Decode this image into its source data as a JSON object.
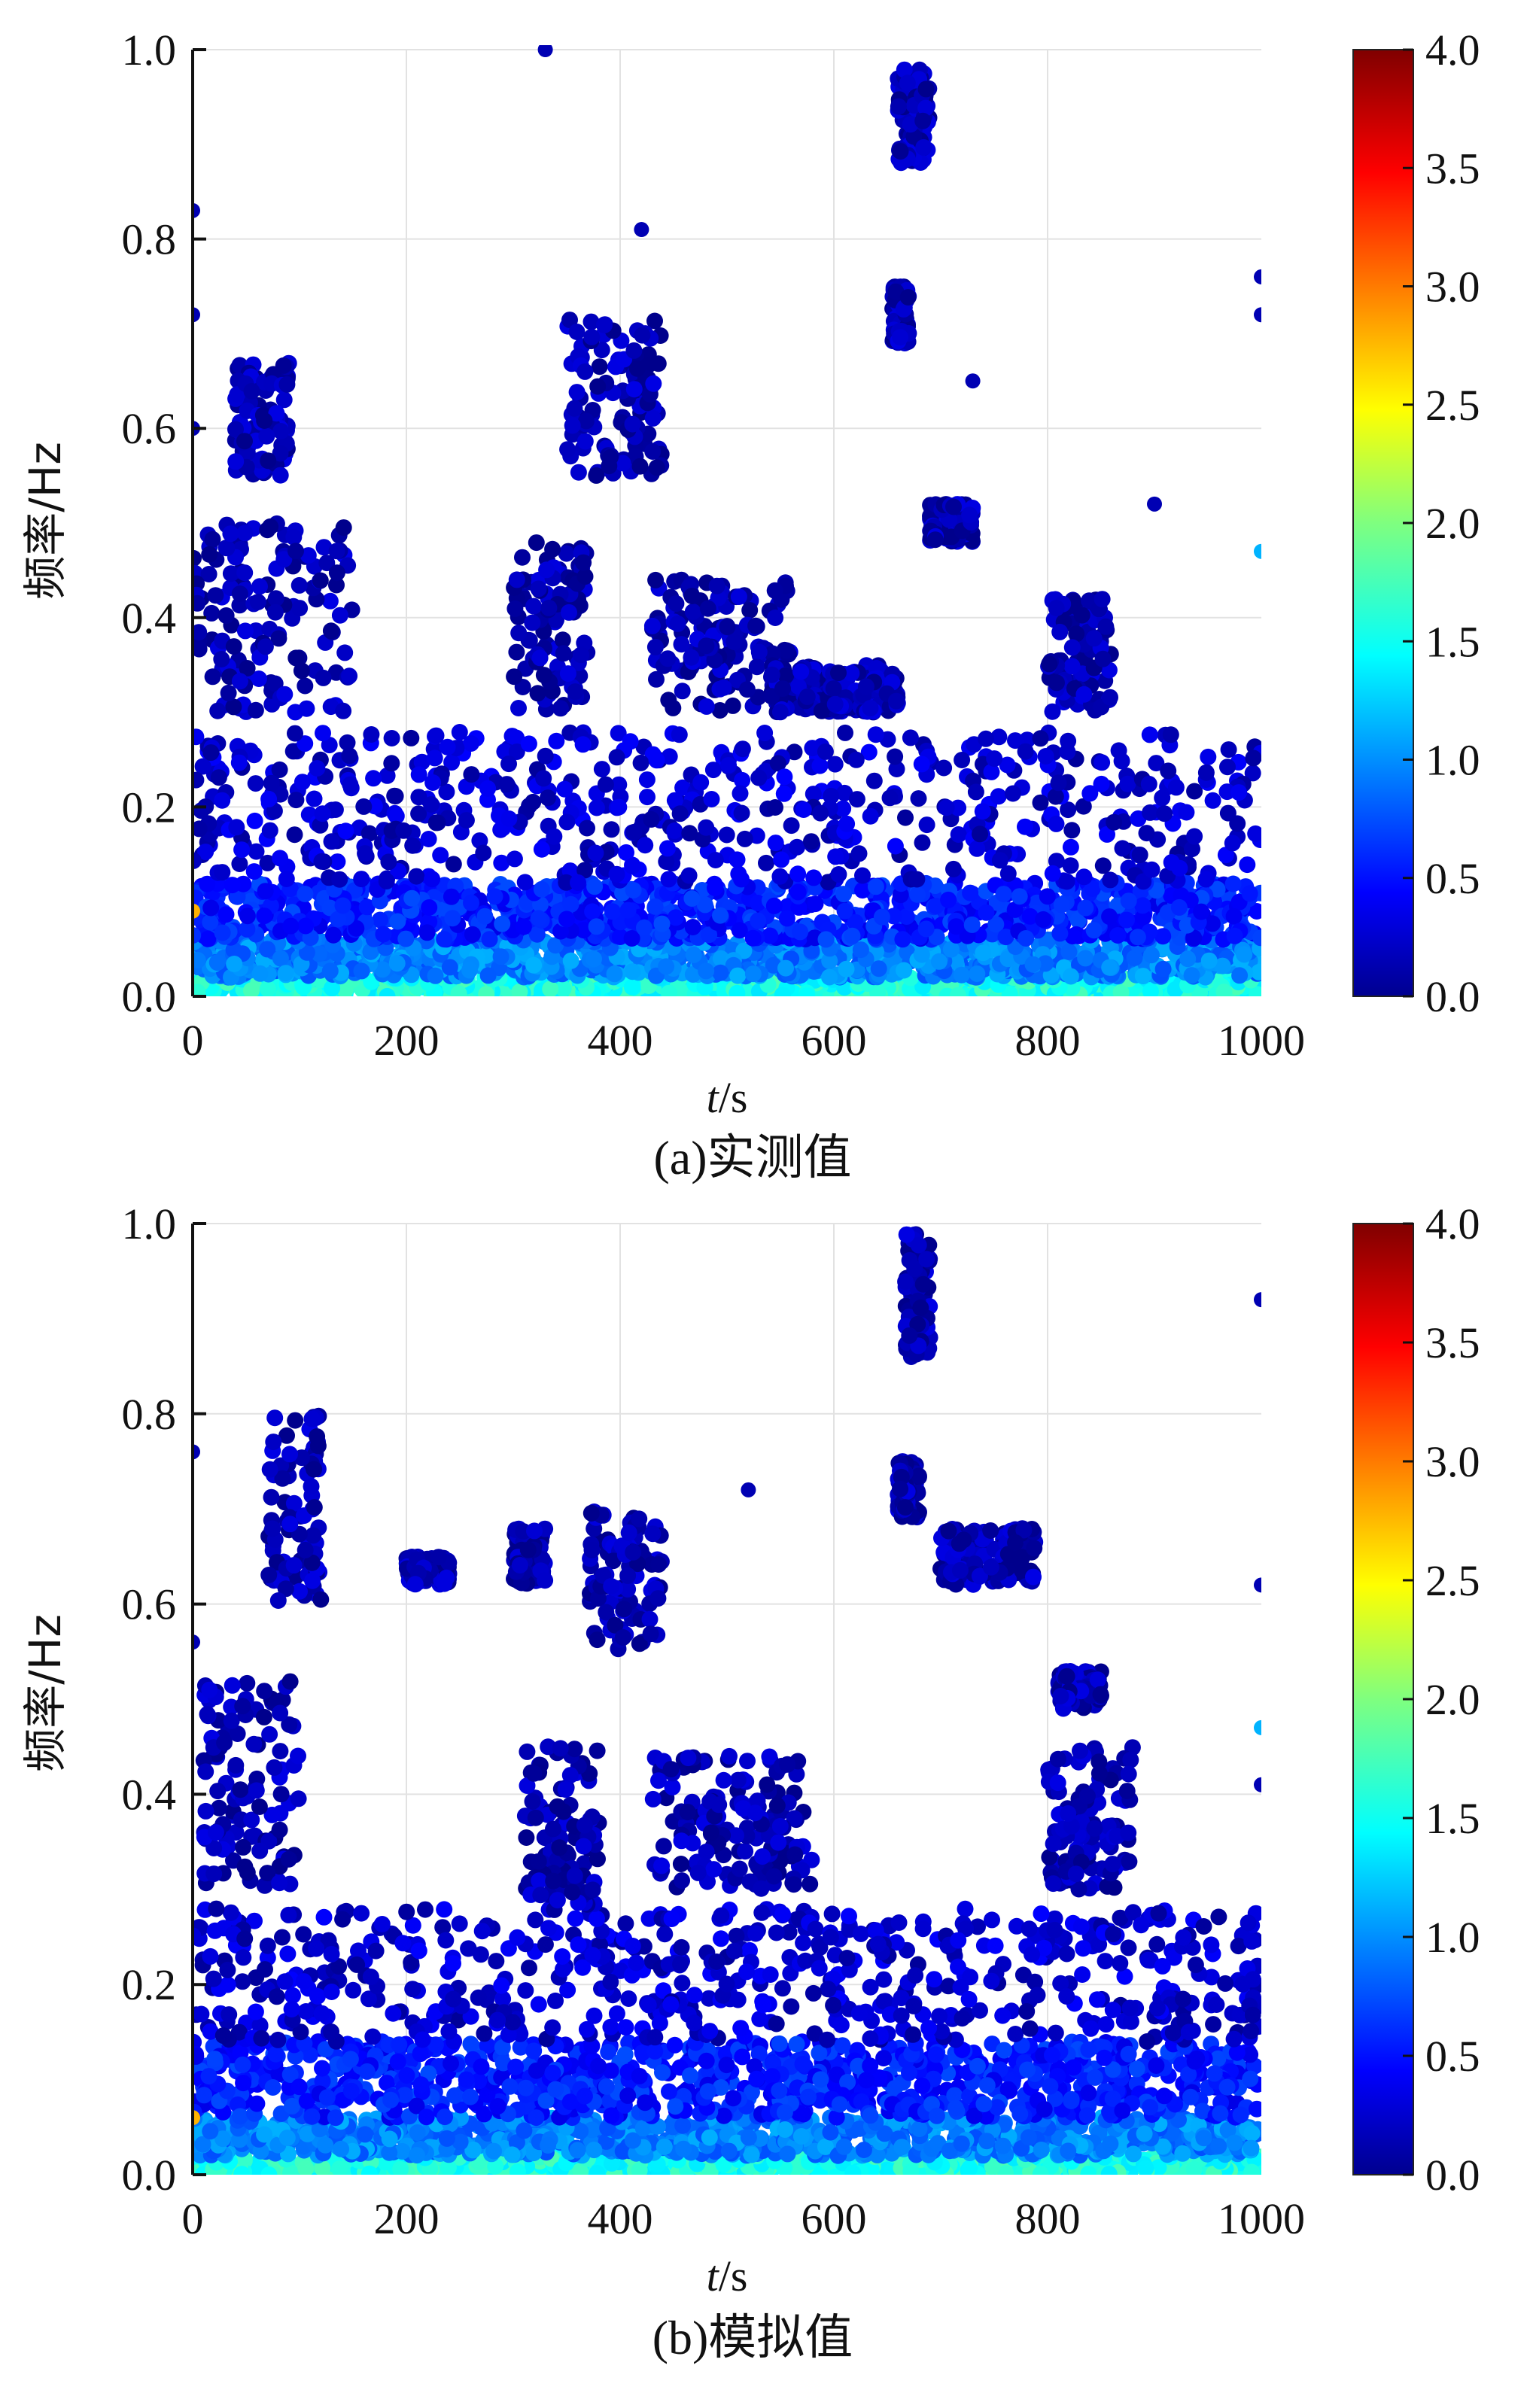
{
  "chart_data": [
    {
      "type": "scatter",
      "caption": "(a)实测值",
      "xlabel_italic": "t",
      "xlabel_unit": "/s",
      "ylabel": "频率/Hz",
      "xlim": [
        0,
        1000
      ],
      "ylim": [
        0,
        1.0
      ],
      "xticks": [
        "0",
        "200",
        "400",
        "600",
        "800",
        "1000"
      ],
      "yticks": [
        "0.0",
        "0.2",
        "0.4",
        "0.6",
        "0.8",
        "1.0"
      ],
      "grid": true,
      "colorbar": {
        "range": [
          0,
          4.0
        ],
        "ticks": [
          "0.0",
          "0.5",
          "1.0",
          "1.5",
          "2.0",
          "2.5",
          "3.0",
          "3.5",
          "4.0"
        ],
        "colormap": "jet"
      },
      "clusters": [
        {
          "x": [
            0,
            1000
          ],
          "y": [
            0.0,
            0.02
          ],
          "value": 1.6
        },
        {
          "x": [
            0,
            1000
          ],
          "y": [
            0.02,
            0.06
          ],
          "value": 1.0
        },
        {
          "x": [
            0,
            1000
          ],
          "y": [
            0.06,
            0.12
          ],
          "value": 0.6
        },
        {
          "x": [
            0,
            1000
          ],
          "y": [
            0.12,
            0.28
          ],
          "value": 0.3
        },
        {
          "x": [
            0,
            150
          ],
          "y": [
            0.3,
            0.5
          ],
          "value": 0.2
        },
        {
          "x": [
            40,
            90
          ],
          "y": [
            0.55,
            0.67
          ],
          "value": 0.2
        },
        {
          "x": [
            300,
            370
          ],
          "y": [
            0.3,
            0.48
          ],
          "value": 0.2
        },
        {
          "x": [
            350,
            440
          ],
          "y": [
            0.55,
            0.72
          ],
          "value": 0.2
        },
        {
          "x": [
            430,
            560
          ],
          "y": [
            0.3,
            0.44
          ],
          "value": 0.2
        },
        {
          "x": [
            690,
            730
          ],
          "y": [
            0.48,
            0.52
          ],
          "value": 0.2
        },
        {
          "x": [
            800,
            860
          ],
          "y": [
            0.3,
            0.42
          ],
          "value": 0.2
        },
        {
          "x": [
            660,
            690
          ],
          "y": [
            0.88,
            0.98
          ],
          "value": 0.2
        },
        {
          "x": [
            655,
            670
          ],
          "y": [
            0.69,
            0.75
          ],
          "value": 0.2
        },
        {
          "x": [
            540,
            660
          ],
          "y": [
            0.3,
            0.35
          ],
          "value": 0.2
        }
      ],
      "points": [
        {
          "x": 330,
          "y": 1.0,
          "value": 0.2
        },
        {
          "x": 0,
          "y": 0.83,
          "value": 0.2
        },
        {
          "x": 0,
          "y": 0.72,
          "value": 0.2
        },
        {
          "x": 0,
          "y": 0.6,
          "value": 0.2
        },
        {
          "x": 1000,
          "y": 0.47,
          "value": 1.2
        },
        {
          "x": 1000,
          "y": 0.76,
          "value": 0.2
        },
        {
          "x": 1000,
          "y": 0.72,
          "value": 0.2
        },
        {
          "x": 900,
          "y": 0.52,
          "value": 0.2
        },
        {
          "x": 730,
          "y": 0.65,
          "value": 0.2
        },
        {
          "x": 0,
          "y": 0.09,
          "value": 2.8
        },
        {
          "x": 420,
          "y": 0.81,
          "value": 0.2
        }
      ]
    },
    {
      "type": "scatter",
      "caption": "(b)模拟值",
      "xlabel_italic": "t",
      "xlabel_unit": "/s",
      "ylabel": "频率/Hz",
      "xlim": [
        0,
        1000
      ],
      "ylim": [
        0,
        1.0
      ],
      "xticks": [
        "0",
        "200",
        "400",
        "600",
        "800",
        "1000"
      ],
      "yticks": [
        "0.0",
        "0.2",
        "0.4",
        "0.6",
        "0.8",
        "1.0"
      ],
      "grid": true,
      "colorbar": {
        "range": [
          0,
          4.0
        ],
        "ticks": [
          "0.0",
          "0.5",
          "1.0",
          "1.5",
          "2.0",
          "2.5",
          "3.0",
          "3.5",
          "4.0"
        ],
        "colormap": "jet"
      },
      "clusters": [
        {
          "x": [
            0,
            1000
          ],
          "y": [
            0.0,
            0.02
          ],
          "value": 1.6
        },
        {
          "x": [
            0,
            1000
          ],
          "y": [
            0.02,
            0.06
          ],
          "value": 1.0
        },
        {
          "x": [
            0,
            1000
          ],
          "y": [
            0.06,
            0.14
          ],
          "value": 0.6
        },
        {
          "x": [
            0,
            1000
          ],
          "y": [
            0.14,
            0.28
          ],
          "value": 0.3
        },
        {
          "x": [
            10,
            100
          ],
          "y": [
            0.3,
            0.52
          ],
          "value": 0.2
        },
        {
          "x": [
            70,
            120
          ],
          "y": [
            0.6,
            0.8
          ],
          "value": 0.2
        },
        {
          "x": [
            310,
            380
          ],
          "y": [
            0.28,
            0.45
          ],
          "value": 0.2
        },
        {
          "x": [
            370,
            440
          ],
          "y": [
            0.55,
            0.7
          ],
          "value": 0.2
        },
        {
          "x": [
            430,
            580
          ],
          "y": [
            0.3,
            0.44
          ],
          "value": 0.2
        },
        {
          "x": [
            800,
            880
          ],
          "y": [
            0.3,
            0.45
          ],
          "value": 0.2
        },
        {
          "x": [
            810,
            850
          ],
          "y": [
            0.49,
            0.53
          ],
          "value": 0.2
        },
        {
          "x": [
            665,
            690
          ],
          "y": [
            0.86,
            0.99
          ],
          "value": 0.2
        },
        {
          "x": [
            660,
            680
          ],
          "y": [
            0.69,
            0.75
          ],
          "value": 0.2
        },
        {
          "x": [
            700,
            790
          ],
          "y": [
            0.62,
            0.68
          ],
          "value": 0.2
        },
        {
          "x": [
            200,
            240
          ],
          "y": [
            0.62,
            0.65
          ],
          "value": 0.2
        },
        {
          "x": [
            300,
            330
          ],
          "y": [
            0.62,
            0.68
          ],
          "value": 0.2
        }
      ],
      "points": [
        {
          "x": 0,
          "y": 0.76,
          "value": 0.2
        },
        {
          "x": 0,
          "y": 0.56,
          "value": 0.2
        },
        {
          "x": 1000,
          "y": 0.92,
          "value": 0.2
        },
        {
          "x": 1000,
          "y": 0.62,
          "value": 0.2
        },
        {
          "x": 1000,
          "y": 0.47,
          "value": 1.2
        },
        {
          "x": 1000,
          "y": 0.41,
          "value": 0.2
        },
        {
          "x": 0,
          "y": 0.06,
          "value": 2.8
        },
        {
          "x": 520,
          "y": 0.72,
          "value": 0.2
        }
      ]
    }
  ]
}
